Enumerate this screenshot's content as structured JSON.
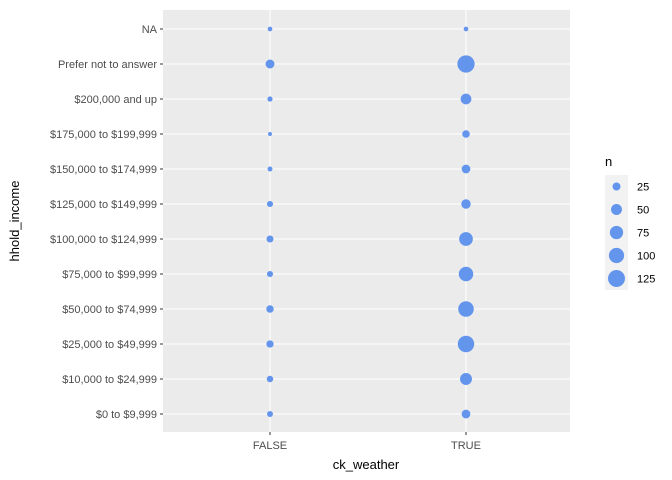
{
  "colors": {
    "panel_background": "#EBEBEB",
    "grid_line": "#FFFFFF",
    "point_fill": "#6495ED",
    "legend_key_background": "#F2F2F2"
  },
  "chart_data": {
    "type": "scatter",
    "xlabel": "ck_weather",
    "ylabel": "hhold_income",
    "x_categories": [
      "FALSE",
      "TRUE"
    ],
    "y_categories": [
      "$0 to $9,999",
      "$10,000 to $24,999",
      "$25,000 to $49,999",
      "$50,000 to $74,999",
      "$75,000 to $99,999",
      "$100,000 to $124,999",
      "$125,000 to $149,999",
      "$150,000 to $174,999",
      "$175,000 to $199,999",
      "$200,000 and up",
      "Prefer not to answer",
      "NA"
    ],
    "size_legend": {
      "title": "n",
      "breaks": [
        25,
        50,
        75,
        100,
        125
      ]
    },
    "size_range_n": [
      2,
      135
    ],
    "points": [
      {
        "x": "FALSE",
        "y": "$0 to $9,999",
        "n": 12
      },
      {
        "x": "FALSE",
        "y": "$10,000 to $24,999",
        "n": 15
      },
      {
        "x": "FALSE",
        "y": "$25,000 to $49,999",
        "n": 20
      },
      {
        "x": "FALSE",
        "y": "$50,000 to $74,999",
        "n": 21
      },
      {
        "x": "FALSE",
        "y": "$75,000 to $99,999",
        "n": 13
      },
      {
        "x": "FALSE",
        "y": "$100,000 to $124,999",
        "n": 18
      },
      {
        "x": "FALSE",
        "y": "$125,000 to $149,999",
        "n": 13
      },
      {
        "x": "FALSE",
        "y": "$150,000 to $174,999",
        "n": 7
      },
      {
        "x": "FALSE",
        "y": "$175,000 to $199,999",
        "n": 3
      },
      {
        "x": "FALSE",
        "y": "$200,000 and up",
        "n": 8
      },
      {
        "x": "FALSE",
        "y": "Prefer not to answer",
        "n": 32
      },
      {
        "x": "FALSE",
        "y": "NA",
        "n": 6
      },
      {
        "x": "TRUE",
        "y": "$0 to $9,999",
        "n": 30
      },
      {
        "x": "TRUE",
        "y": "$10,000 to $24,999",
        "n": 60
      },
      {
        "x": "TRUE",
        "y": "$25,000 to $49,999",
        "n": 118
      },
      {
        "x": "TRUE",
        "y": "$50,000 to $74,999",
        "n": 105
      },
      {
        "x": "TRUE",
        "y": "$75,000 to $99,999",
        "n": 90
      },
      {
        "x": "TRUE",
        "y": "$100,000 to $124,999",
        "n": 80
      },
      {
        "x": "TRUE",
        "y": "$125,000 to $149,999",
        "n": 36
      },
      {
        "x": "TRUE",
        "y": "$150,000 to $174,999",
        "n": 30
      },
      {
        "x": "TRUE",
        "y": "$175,000 to $199,999",
        "n": 22
      },
      {
        "x": "TRUE",
        "y": "$200,000 and up",
        "n": 48
      },
      {
        "x": "TRUE",
        "y": "Prefer not to answer",
        "n": 130
      },
      {
        "x": "TRUE",
        "y": "NA",
        "n": 6
      }
    ]
  }
}
